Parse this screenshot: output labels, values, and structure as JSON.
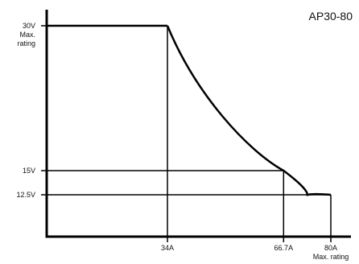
{
  "chart_data": {
    "type": "line",
    "title": "AP30-80",
    "x_unit": "A",
    "y_unit": "V",
    "xlim": [
      0,
      80
    ],
    "ylim": [
      12.5,
      30
    ],
    "x_ticks": [
      {
        "value": 34,
        "label": "34A",
        "sublabel": ""
      },
      {
        "value": 66.7,
        "label": "66.7A",
        "sublabel": ""
      },
      {
        "value": 80,
        "label": "80A",
        "sublabel": "Max. rating"
      }
    ],
    "y_ticks": [
      {
        "value": 30,
        "label": "30V",
        "sublabel1": "Max.",
        "sublabel2": "rating"
      },
      {
        "value": 15,
        "label": "15V",
        "sublabel1": "",
        "sublabel2": ""
      },
      {
        "value": 12.5,
        "label": "12.5V",
        "sublabel1": "",
        "sublabel2": ""
      }
    ],
    "series": [
      {
        "description_hidden": "",
        "constant_voltage_segment": {
          "x": [
            0,
            34
          ],
          "y": [
            30,
            30
          ]
        },
        "constant_power_curve": {
          "power_W": 1000,
          "x_start": 34,
          "x_end": 80
        }
      }
    ],
    "reference_lines": {
      "vertical_at_x": [
        34,
        66.7,
        80
      ],
      "horizontal_at_y": [
        15,
        12.5
      ]
    },
    "colors": {
      "line": "#000000",
      "background": "#ffffff",
      "text": "#111111"
    }
  }
}
